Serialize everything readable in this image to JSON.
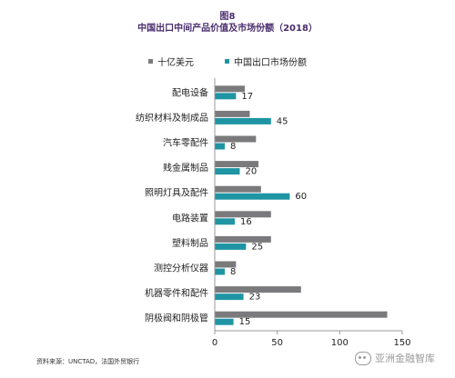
{
  "figure": {
    "label": "图8",
    "title": "中国出口中间产品价值及市场份额（2018）",
    "source": "资料来源：UNCTAD，法国外贸银行",
    "watermark": "亚洲金融智库"
  },
  "colors": {
    "series_gray": "#7a7a7c",
    "series_teal": "#1f95a4",
    "axis": "#999999"
  },
  "chart_data": {
    "type": "bar",
    "orientation": "horizontal",
    "categories": [
      "配电设备",
      "纺织材料及制成品",
      "汽车零配件",
      "贱金属制品",
      "照明灯具及配件",
      "电路装置",
      "塑料制品",
      "测控分析仪器",
      "机器零件和配件",
      "阴极阀和阴极管"
    ],
    "series": [
      {
        "name": "十亿美元",
        "color": "#7a7a7c",
        "values": [
          24,
          28,
          33,
          35,
          37,
          45,
          45,
          17,
          69,
          138
        ],
        "labels_shown": false
      },
      {
        "name": "中国出口市场份额",
        "color": "#1f95a4",
        "values": [
          17,
          45,
          8,
          20,
          60,
          16,
          25,
          8,
          23,
          15
        ],
        "labels_shown": true
      }
    ],
    "xlim": [
      0,
      150
    ],
    "x_ticks": [
      "0",
      "50",
      "100",
      "150"
    ],
    "grid": false,
    "legend": "top"
  }
}
